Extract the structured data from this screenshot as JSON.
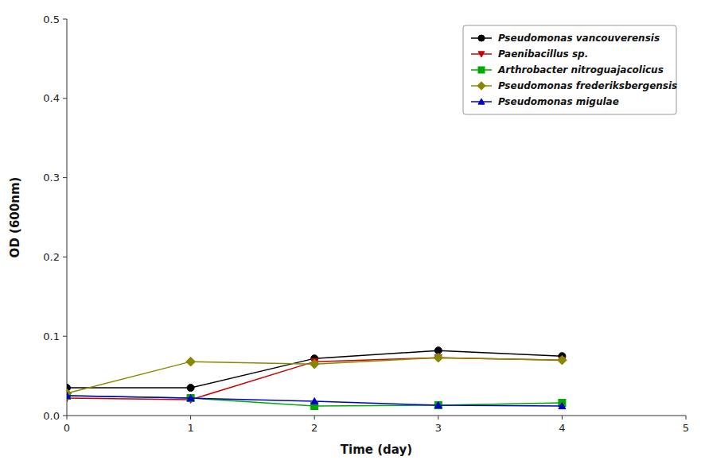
{
  "chart_data": {
    "type": "line",
    "xlabel": "Time (day)",
    "ylabel": "OD (600nm)",
    "x": [
      0,
      1,
      2,
      3,
      4
    ],
    "series": [
      {
        "name": "Pseudomonas vancouverensis",
        "color": "#000000",
        "marker": "circle",
        "values": [
          0.035,
          0.035,
          0.072,
          0.082,
          0.075
        ]
      },
      {
        "name": "Paenibacillus sp.",
        "color": "#cc0000",
        "marker": "triangle-down",
        "values": [
          0.022,
          0.02,
          0.068,
          0.073,
          0.07
        ]
      },
      {
        "name": "Arthrobacter nitroguajacolicus",
        "color": "#00aa00",
        "marker": "square",
        "values": [
          0.025,
          0.022,
          0.012,
          0.013,
          0.016
        ]
      },
      {
        "name": "Pseudomonas frederiksbergensis",
        "color": "#888800",
        "marker": "diamond",
        "values": [
          0.028,
          0.068,
          0.065,
          0.073,
          0.07
        ]
      },
      {
        "name": "Pseudomonas migulae",
        "color": "#0000cc",
        "marker": "triangle-up",
        "values": [
          0.025,
          0.022,
          0.018,
          0.013,
          0.012
        ]
      }
    ],
    "xlim": [
      0,
      5
    ],
    "ylim": [
      0,
      0.5
    ],
    "xticks": [
      0,
      1,
      2,
      3,
      4,
      5
    ],
    "yticks": [
      {
        "value": 0,
        "label": "0.0"
      },
      0.1,
      0.2,
      0.3,
      0.4,
      0.5
    ],
    "legend": "upper right"
  }
}
